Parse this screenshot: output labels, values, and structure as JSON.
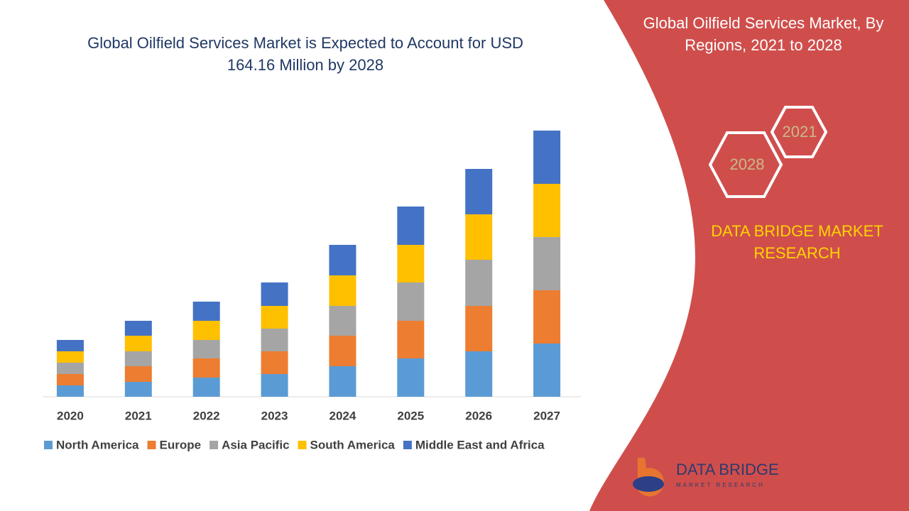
{
  "chart_data": {
    "type": "bar",
    "stacked": true,
    "title": "Global Oilfield Services Market is Expected to Account for USD 164.16 Million by 2028",
    "categories": [
      "2020",
      "2021",
      "2022",
      "2023",
      "2024",
      "2025",
      "2026",
      "2027"
    ],
    "series": [
      {
        "name": "North America",
        "color": "#5b9bd5",
        "values": [
          16,
          21,
          27,
          32,
          43,
          54,
          64,
          75
        ]
      },
      {
        "name": "Europe",
        "color": "#ed7d31",
        "values": [
          16,
          22,
          27,
          32,
          43,
          53,
          64,
          75
        ]
      },
      {
        "name": "Asia Pacific",
        "color": "#a5a5a5",
        "values": [
          16,
          21,
          26,
          32,
          42,
          54,
          65,
          75
        ]
      },
      {
        "name": "South America",
        "color": "#ffc000",
        "values": [
          16,
          22,
          27,
          32,
          43,
          53,
          64,
          75
        ]
      },
      {
        "name": "Middle East and Africa",
        "color": "#4472c4",
        "values": [
          16,
          21,
          27,
          33,
          43,
          54,
          64,
          75
        ]
      }
    ]
  },
  "side_panel": {
    "title": "Global Oilfield Services Market, By Regions, 2021 to 2028",
    "badges": [
      "2021",
      "2028"
    ],
    "brand": "DATA BRIDGE MARKET RESEARCH"
  },
  "logo": {
    "name": "DATA BRIDGE",
    "tagline": "MARKET RESEARCH"
  }
}
